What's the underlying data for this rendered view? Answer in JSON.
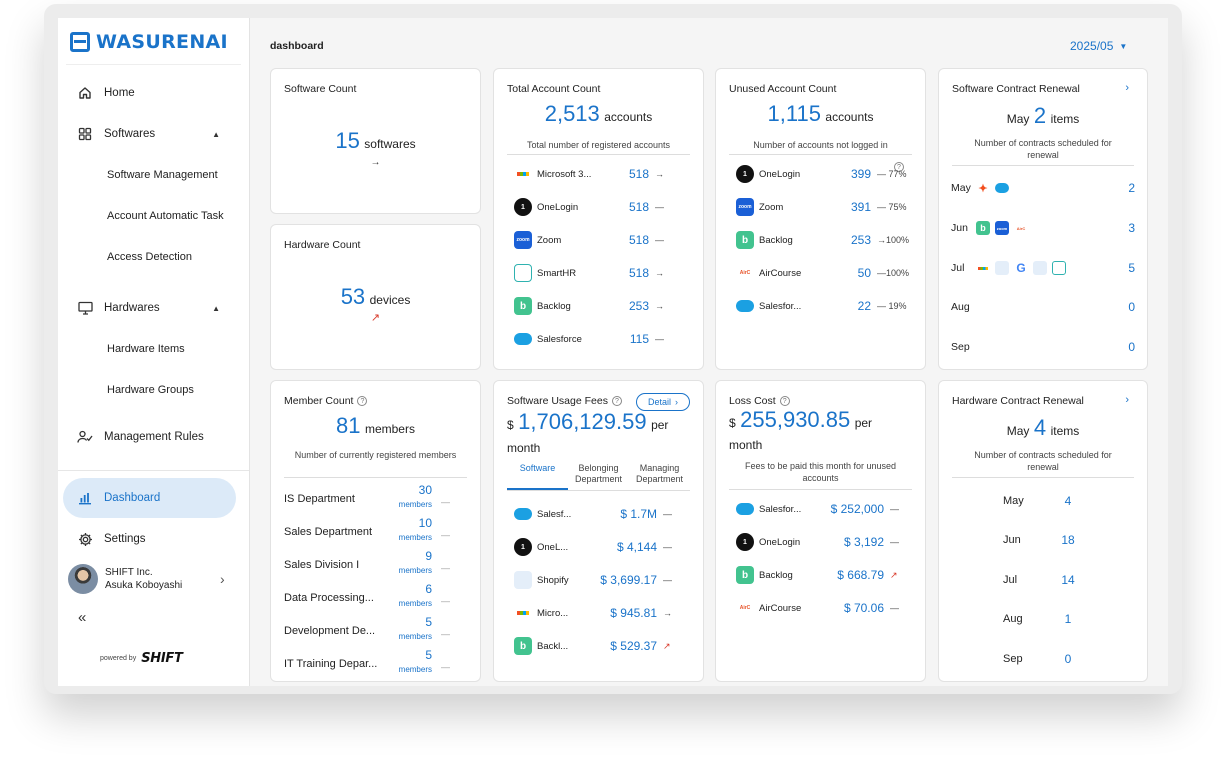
{
  "brand": {
    "name": "WASURENAI",
    "powered_label": "powered by",
    "powered_brand": "SHIFT"
  },
  "sidebar": {
    "items": [
      {
        "label": "Home",
        "icon": "home-icon"
      },
      {
        "label": "Softwares",
        "icon": "grid-icon"
      },
      {
        "label": "Software Management"
      },
      {
        "label": "Account Automatic Task"
      },
      {
        "label": "Access Detection"
      },
      {
        "label": "Hardwares",
        "icon": "monitor-icon"
      },
      {
        "label": "Hardware Items"
      },
      {
        "label": "Hardware Groups"
      },
      {
        "label": "Management Rules",
        "icon": "user-check-icon"
      },
      {
        "label": "Dashboard",
        "icon": "bar-chart-icon",
        "active": true
      },
      {
        "label": "Settings",
        "icon": "gear-icon"
      }
    ],
    "user": {
      "company": "SHIFT Inc.",
      "name": "Asuka Koboyashi"
    }
  },
  "header": {
    "title": "dashboard",
    "month": "2025/05"
  },
  "software_count": {
    "title": "Software Count",
    "value": "15",
    "unit": "softwares",
    "trend": "→"
  },
  "hardware_count": {
    "title": "Hardware Count",
    "value": "53",
    "unit": "devices",
    "trend": "↗"
  },
  "total_accounts": {
    "title": "Total Account Count",
    "value": "2,513",
    "unit": "accounts",
    "subtitle": "Total number of registered accounts",
    "rows": [
      {
        "name": "Microsoft 3...",
        "value": "518",
        "trend": "→"
      },
      {
        "name": "OneLogin",
        "value": "518",
        "trend": "—"
      },
      {
        "name": "Zoom",
        "value": "518",
        "trend": "—"
      },
      {
        "name": "SmartHR",
        "value": "518",
        "trend": "→"
      },
      {
        "name": "Backlog",
        "value": "253",
        "trend": "→"
      },
      {
        "name": "Salesforce",
        "value": "115",
        "trend": "—"
      }
    ]
  },
  "unused_accounts": {
    "title": "Unused Account Count",
    "value": "1,115",
    "unit": "accounts",
    "subtitle": "Number of accounts not logged in",
    "rows": [
      {
        "name": "OneLogin",
        "value": "399",
        "trend": "— 77%"
      },
      {
        "name": "Zoom",
        "value": "391",
        "trend": "— 75%"
      },
      {
        "name": "Backlog",
        "value": "253",
        "trend": "→100%"
      },
      {
        "name": "AirCourse",
        "value": "50",
        "trend": "—100%"
      },
      {
        "name": "Salesfor...",
        "value": "22",
        "trend": "— 19%"
      }
    ]
  },
  "software_renewal": {
    "title": "Software Contract Renewal",
    "month": "May",
    "value": "2",
    "unit": "items",
    "subtitle": "Number of contracts scheduled for renewal",
    "rows": [
      {
        "month": "May",
        "count": "2"
      },
      {
        "month": "Jun",
        "count": "3"
      },
      {
        "month": "Jul",
        "count": "5"
      },
      {
        "month": "Aug",
        "count": "0"
      },
      {
        "month": "Sep",
        "count": "0"
      }
    ]
  },
  "member_count": {
    "title": "Member Count",
    "value": "81",
    "unit": "members",
    "subtitle": "Number of currently registered members",
    "member_unit": "members",
    "rows": [
      {
        "name": "IS Department",
        "value": "30"
      },
      {
        "name": "Sales Department",
        "value": "10"
      },
      {
        "name": "Sales Division I",
        "value": "9"
      },
      {
        "name": "Data Processing...",
        "value": "6"
      },
      {
        "name": "Development De...",
        "value": "5"
      },
      {
        "name": "IT Training Depar...",
        "value": "5"
      }
    ]
  },
  "usage_fees": {
    "title": "Software Usage Fees",
    "detail_label": "Detail",
    "currency": "$",
    "value": "1,706,129.59",
    "unit_1": "per",
    "unit_2": "month",
    "tabs": [
      "Software",
      "Belonging Department",
      "Managing Department"
    ],
    "rows": [
      {
        "name": "Salesf...",
        "value": "$ 1.7M",
        "trend": "—"
      },
      {
        "name": "OneL...",
        "value": "$ 4,144",
        "trend": "—"
      },
      {
        "name": "Shopify",
        "value": "$ 3,699.17",
        "trend": "—"
      },
      {
        "name": "Micro...",
        "value": "$ 945.81",
        "trend": "→"
      },
      {
        "name": "Backl...",
        "value": "$ 529.37",
        "trend": "↗"
      }
    ]
  },
  "loss_cost": {
    "title": "Loss Cost",
    "currency": "$",
    "value": "255,930.85",
    "unit_1": "per",
    "unit_2": "month",
    "subtitle": "Fees to be paid this month for unused accounts",
    "rows": [
      {
        "name": "Salesfor...",
        "value": "$ 252,000",
        "trend": "—"
      },
      {
        "name": "OneLogin",
        "value": "$ 3,192",
        "trend": "—"
      },
      {
        "name": "Backlog",
        "value": "$ 668.79",
        "trend": "↗"
      },
      {
        "name": "AirCourse",
        "value": "$ 70.06",
        "trend": "—"
      }
    ]
  },
  "hardware_renewal": {
    "title": "Hardware Contract Renewal",
    "month": "May",
    "value": "4",
    "unit": "items",
    "subtitle": "Number of contracts scheduled for renewal",
    "rows": [
      {
        "month": "May",
        "count": "4"
      },
      {
        "month": "Jun",
        "count": "18"
      },
      {
        "month": "Jul",
        "count": "14"
      },
      {
        "month": "Aug",
        "count": "1"
      },
      {
        "month": "Sep",
        "count": "0"
      }
    ]
  },
  "colors": {
    "accent": "#1a73c9",
    "active_bg": "#dceaf8",
    "up_trend": "#d93a2b"
  }
}
